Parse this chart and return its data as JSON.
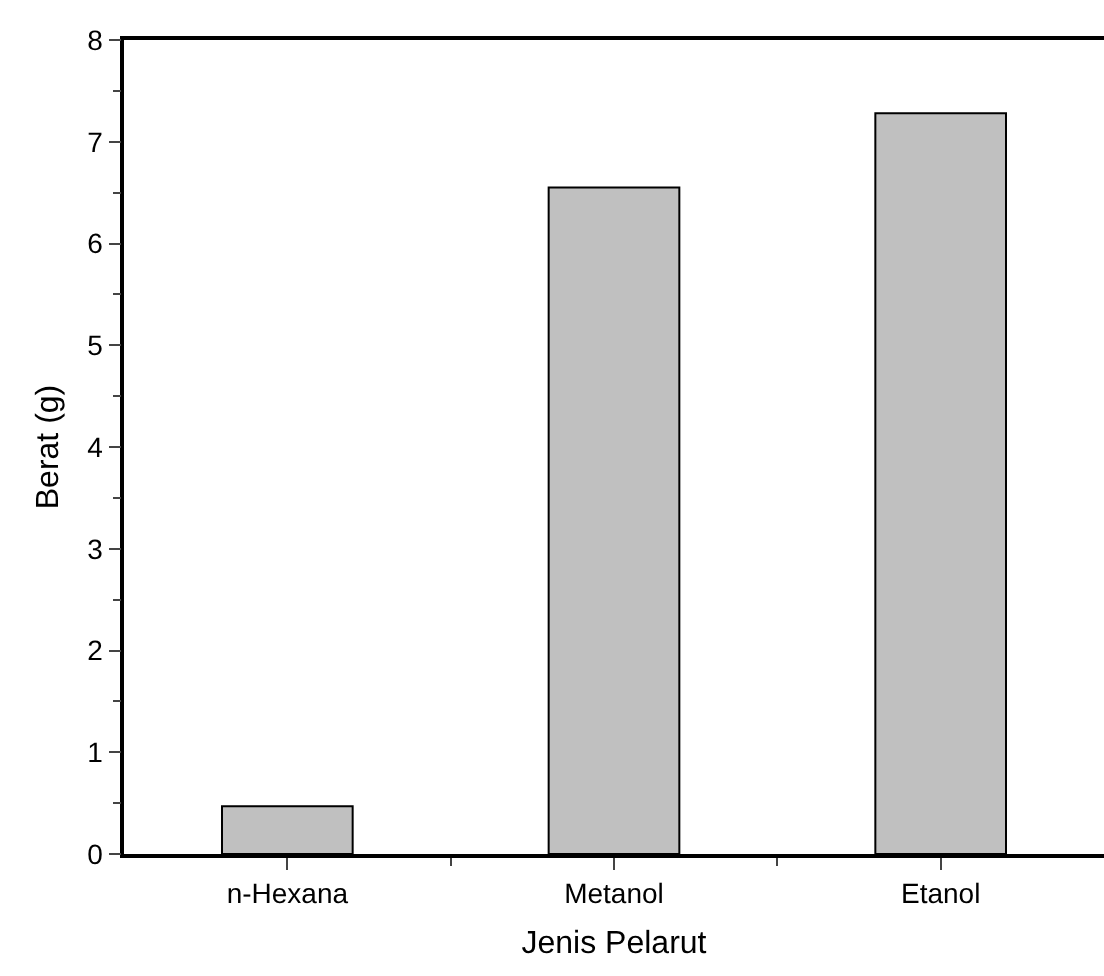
{
  "chart_data": {
    "type": "bar",
    "xlabel": "Jenis Pelarut",
    "ylabel": "Berat (g)",
    "categories": [
      "n-Hexana",
      "Metanol",
      "Etanol"
    ],
    "values": [
      0.47,
      6.55,
      7.28
    ],
    "color": "#c0c0c0",
    "ylim": [
      0,
      8
    ],
    "yticks": [
      0,
      1,
      2,
      3,
      4,
      5,
      6,
      7,
      8
    ],
    "grid": false
  }
}
